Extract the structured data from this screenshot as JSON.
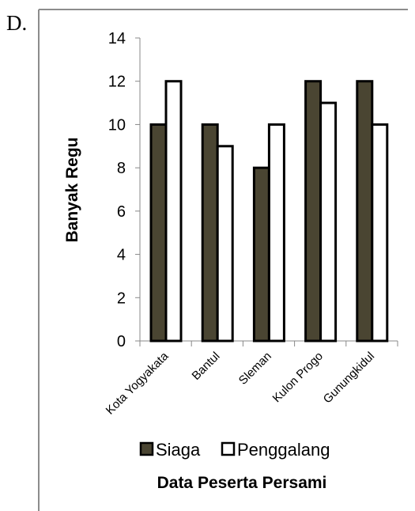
{
  "option_label": "D.",
  "colors": {
    "siaga": "#4a4532",
    "penggalang": "#ffffff",
    "bar_stroke": "#000000",
    "frame": "#8c8c8c"
  },
  "chart_data": {
    "type": "bar",
    "categories": [
      "Kota Yogyakata",
      "Bantul",
      "Sleman",
      "Kulon Progo",
      "Gunungkidul"
    ],
    "series": [
      {
        "name": "Siaga",
        "values": [
          10,
          10,
          8,
          12,
          12
        ]
      },
      {
        "name": "Penggalang",
        "values": [
          12,
          9,
          10,
          11,
          10
        ]
      }
    ],
    "title": "",
    "xlabel": "Data Peserta Persami",
    "ylabel": "Banyak Regu",
    "ylim": [
      0,
      14
    ],
    "yticks": [
      0,
      2,
      4,
      6,
      8,
      10,
      12,
      14
    ],
    "grid": false,
    "legend_position": "bottom"
  }
}
